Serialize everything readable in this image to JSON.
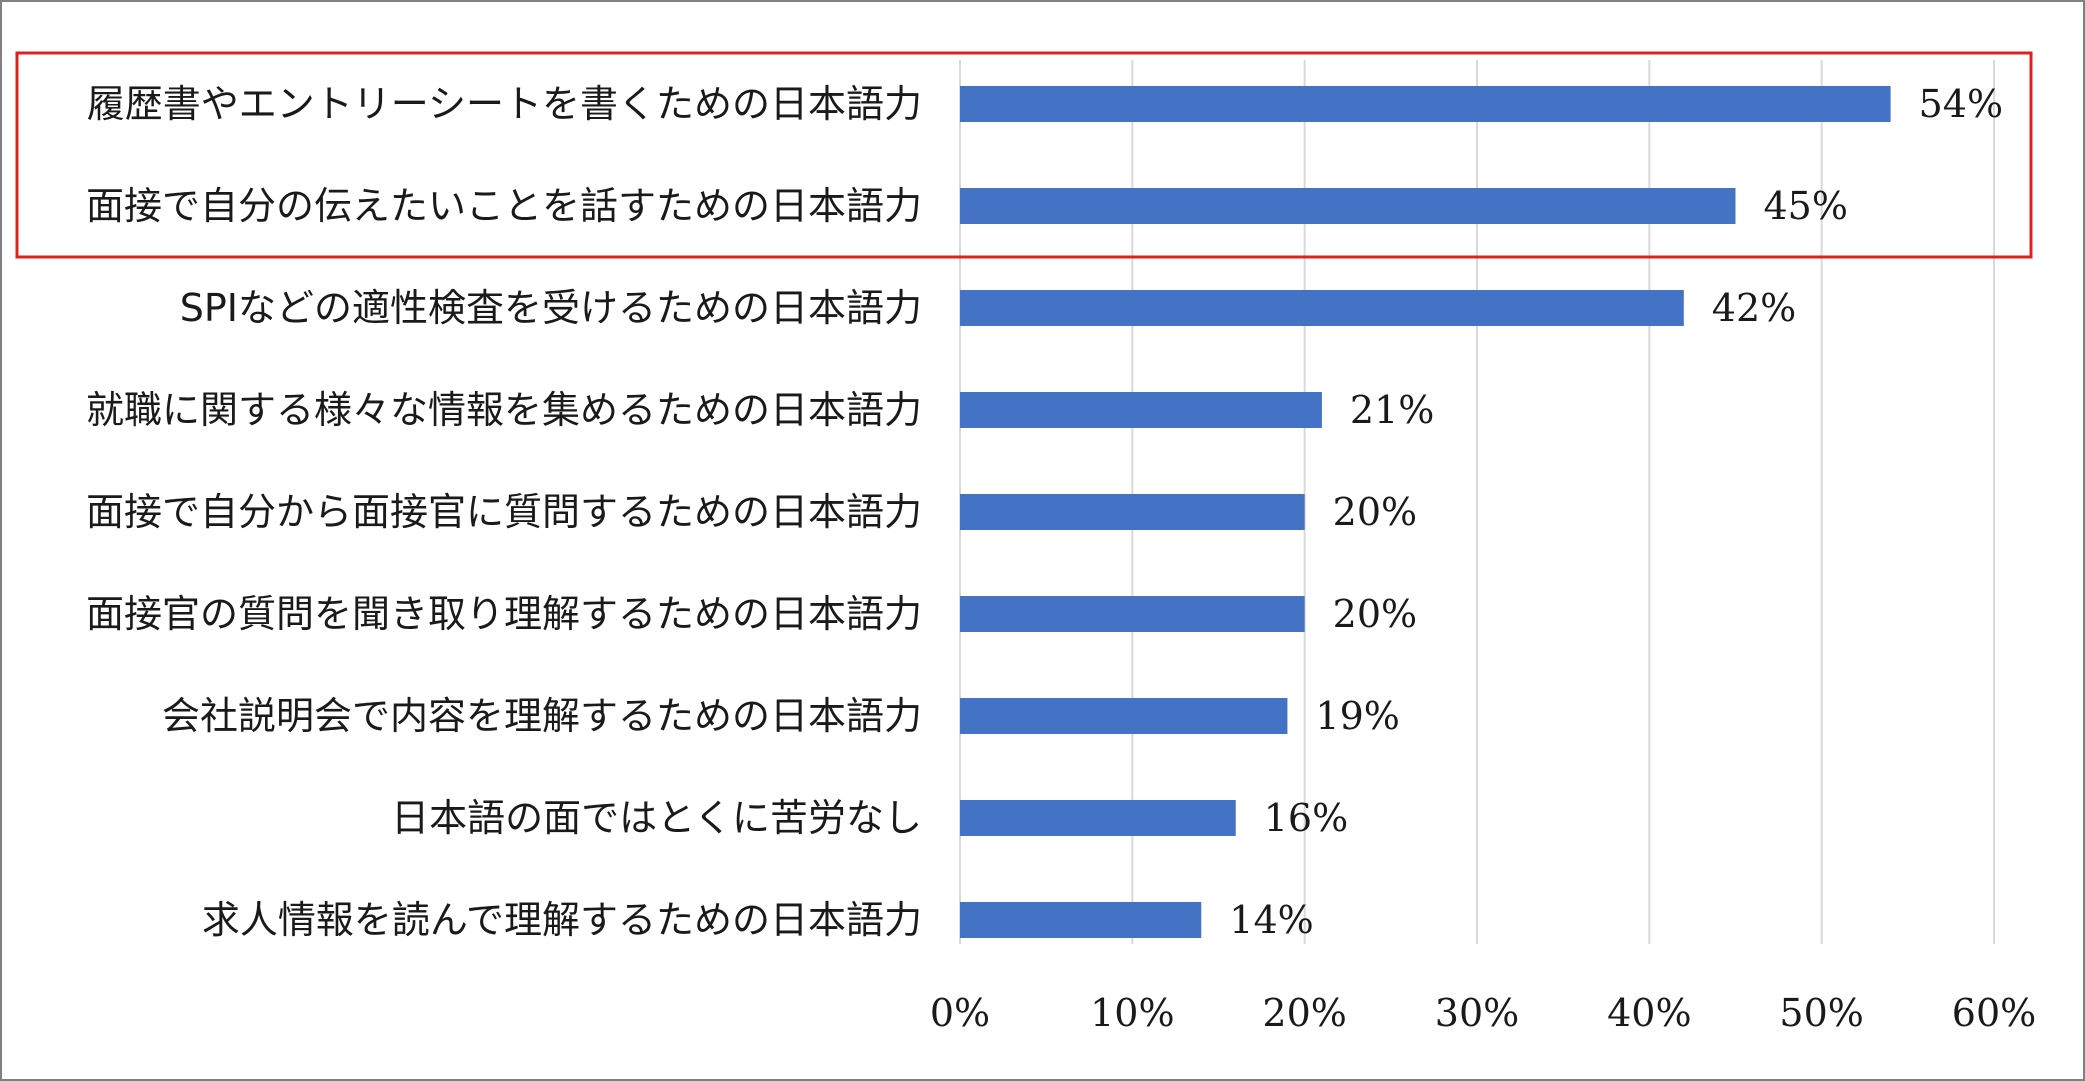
{
  "chart_data": {
    "type": "bar",
    "orientation": "horizontal",
    "categories": [
      "履歴書やエントリーシートを書くための日本語力",
      "面接で自分の伝えたいことを話すための日本語力",
      "SPIなどの適性検査を受けるための日本語力",
      "就職に関する様々な情報を集めるための日本語力",
      "面接で自分から面接官に質問するための日本語力",
      "面接官の質問を聞き取り理解するための日本語力",
      "会社説明会で内容を理解するための日本語力",
      "日本語の面ではとくに苦労なし",
      "求人情報を読んで理解するための日本語力"
    ],
    "values": [
      54,
      45,
      42,
      21,
      20,
      20,
      19,
      16,
      14
    ],
    "value_labels": [
      "54%",
      "45%",
      "42%",
      "21%",
      "20%",
      "20%",
      "19%",
      "16%",
      "14%"
    ],
    "xlim": [
      0,
      60
    ],
    "x_ticks": [
      0,
      10,
      20,
      30,
      40,
      50,
      60
    ],
    "x_tick_labels": [
      "0%",
      "10%",
      "20%",
      "30%",
      "40%",
      "50%",
      "60%"
    ],
    "grid": "vertical",
    "bar_color": "#4472c4",
    "highlight": {
      "categories": [
        0,
        1
      ],
      "color": "#e02020"
    }
  }
}
